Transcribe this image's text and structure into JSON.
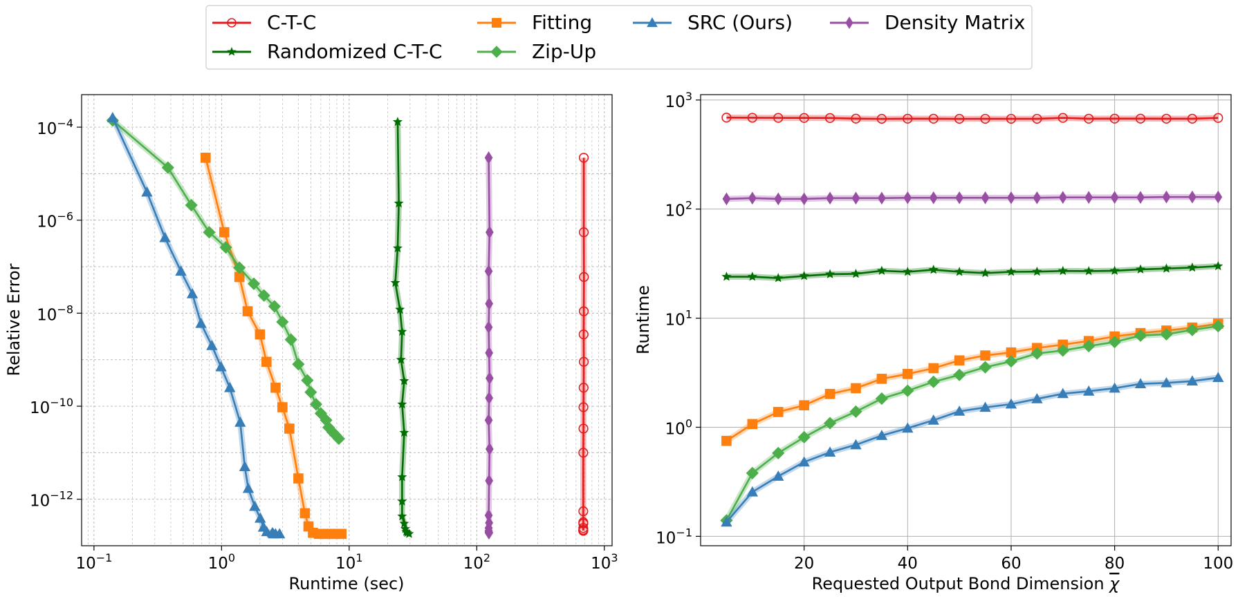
{
  "legend": {
    "entries": [
      {
        "key": "ctc",
        "label": "C-T-C",
        "color": "#e31a1c",
        "marker": "circle-open"
      },
      {
        "key": "rctc",
        "label": "Randomized C-T-C",
        "color": "#006d00",
        "marker": "star"
      },
      {
        "key": "fit",
        "label": "Fitting",
        "color": "#ff7f0e",
        "marker": "square"
      },
      {
        "key": "zip",
        "label": "Zip-Up",
        "color": "#4daf4a",
        "marker": "diamond"
      },
      {
        "key": "src",
        "label": "SRC (Ours)",
        "color": "#377eb8",
        "marker": "triangle"
      },
      {
        "key": "dm",
        "label": "Density Matrix",
        "color": "#984ea3",
        "marker": "thin-diamond"
      }
    ]
  },
  "chart_data": [
    {
      "type": "line",
      "xlabel": "Runtime (sec)",
      "ylabel": "Relative Error",
      "xscale": "log",
      "yscale": "log",
      "xlim": [
        0.08,
        1150
      ],
      "ylim": [
        1e-13,
        0.0005
      ],
      "xticks": [
        {
          "value": 0.1,
          "base": "10",
          "exp": "−1"
        },
        {
          "value": 1,
          "base": "10",
          "exp": "0"
        },
        {
          "value": 10,
          "base": "10",
          "exp": "1"
        },
        {
          "value": 100,
          "base": "10",
          "exp": "2"
        },
        {
          "value": 1000,
          "base": "10",
          "exp": "3"
        }
      ],
      "yticks": [
        {
          "value": 1e-12,
          "base": "10",
          "exp": "−12"
        },
        {
          "value": 1e-10,
          "base": "10",
          "exp": "−10"
        },
        {
          "value": 1e-08,
          "base": "10",
          "exp": "−8"
        },
        {
          "value": 1e-06,
          "base": "10",
          "exp": "−6"
        },
        {
          "value": 0.0001,
          "base": "10",
          "exp": "−4"
        }
      ],
      "grid": "both-major-minor",
      "series": [
        {
          "key": "ctc",
          "x": [
            690,
            690,
            692,
            690,
            688,
            690,
            688,
            686,
            686,
            684,
            684,
            684,
            684,
            684,
            684,
            684,
            684,
            684,
            684
          ],
          "y": [
            2.2e-05,
            5.5e-07,
            6e-08,
            1.1e-08,
            3.5e-09,
            9e-10,
            2.5e-10,
            9.5e-11,
            3.3e-11,
            1e-11,
            3.2e-13,
            5.5e-13,
            3e-13,
            2.4e-13,
            2.2e-13,
            2.1e-13,
            2.1e-13,
            2.1e-13,
            2.1e-13
          ]
        },
        {
          "key": "rctc",
          "x": [
            24,
            24.5,
            24,
            23,
            25,
            26,
            25.5,
            27,
            26,
            27,
            26,
            26,
            26,
            27,
            27.5,
            28,
            28.5,
            29.5
          ],
          "y": [
            0.00013,
            2.3e-06,
            2.5e-07,
            4.5e-08,
            1.2e-08,
            4e-09,
            1e-09,
            3.5e-10,
            1.1e-10,
            2.7e-11,
            3e-12,
            9e-13,
            4.3e-13,
            3e-13,
            2.3e-13,
            2e-13,
            1.9e-13,
            1.8e-13
          ]
        },
        {
          "key": "fit",
          "x": [
            0.75,
            1.05,
            1.38,
            1.6,
            2.0,
            2.25,
            2.65,
            3.0,
            3.4,
            4.0,
            4.5,
            4.8,
            5.2,
            5.8,
            6.3,
            6.8,
            7.4,
            8.0,
            8.7
          ],
          "y": [
            2.2e-05,
            5.5e-07,
            6e-08,
            1.1e-08,
            3.5e-09,
            9e-10,
            2.5e-10,
            9.5e-11,
            3.3e-11,
            2.8e-12,
            5e-13,
            2.6e-13,
            1.9e-13,
            1.8e-13,
            1.8e-13,
            1.8e-13,
            1.8e-13,
            1.8e-13,
            1.8e-13
          ]
        },
        {
          "key": "zip",
          "x": [
            0.14,
            0.38,
            0.58,
            0.8,
            1.08,
            1.38,
            1.79,
            2.15,
            2.6,
            3.0,
            3.5,
            4.0,
            4.7,
            5.0,
            5.5,
            6.0,
            6.6,
            6.9,
            7.4,
            7.8,
            8.3
          ],
          "y": [
            0.00014,
            1.35e-05,
            2.1e-06,
            5.5e-07,
            2.6e-07,
            9.5e-08,
            4.3e-08,
            2.4e-08,
            1.4e-08,
            6.5e-09,
            2.7e-09,
            8e-10,
            3.6e-10,
            2e-10,
            1.1e-10,
            7e-11,
            5e-11,
            3.5e-11,
            2.8e-11,
            2.4e-11,
            2e-11
          ]
        },
        {
          "key": "src",
          "x": [
            0.14,
            0.26,
            0.36,
            0.48,
            0.59,
            0.69,
            0.84,
            0.99,
            1.16,
            1.4,
            1.52,
            1.62,
            1.82,
            2.01,
            2.13,
            2.26,
            2.5,
            2.55,
            2.65,
            2.85
          ],
          "y": [
            0.00016,
            4e-06,
            4.2e-07,
            8e-08,
            2.6e-08,
            6e-09,
            2e-09,
            7e-10,
            2.5e-10,
            4.5e-11,
            5e-12,
            1.7e-12,
            7e-13,
            3.9e-13,
            2.5e-13,
            2e-13,
            1.9e-13,
            1.8e-13,
            1.8e-13,
            1.8e-13
          ]
        },
        {
          "key": "dm",
          "x": [
            124,
            126,
            124,
            125,
            124,
            125,
            126,
            125,
            124,
            126,
            125,
            124,
            125,
            124,
            124,
            124,
            125,
            124,
            125
          ],
          "y": [
            2.2e-05,
            5.5e-07,
            8e-08,
            1.6e-08,
            5e-09,
            1.4e-09,
            4e-10,
            1.5e-10,
            5e-11,
            1.2e-11,
            2.5e-12,
            4.5e-13,
            3.1e-13,
            2.4e-13,
            2.1e-13,
            2e-13,
            1.9e-13,
            1.9e-13,
            1.9e-13
          ]
        }
      ]
    },
    {
      "type": "line",
      "xlabel": "Requested Output Bond Dimension χ",
      "xlabel_main": "Requested Output Bond Dimension ",
      "xlabel_symbol": "χ",
      "ylabel": "Runtime",
      "xscale": "linear",
      "yscale": "log",
      "xlim": [
        0,
        102.5
      ],
      "ylim": [
        0.082,
        1120
      ],
      "xticks": [
        {
          "value": 20,
          "label": "20"
        },
        {
          "value": 40,
          "label": "40"
        },
        {
          "value": 60,
          "label": "60"
        },
        {
          "value": 80,
          "label": "80"
        },
        {
          "value": 100,
          "label": "100"
        }
      ],
      "yticks": [
        {
          "value": 0.1,
          "base": "10",
          "exp": "−1"
        },
        {
          "value": 1,
          "base": "10",
          "exp": "0"
        },
        {
          "value": 10,
          "base": "10",
          "exp": "1"
        },
        {
          "value": 100,
          "base": "10",
          "exp": "2"
        },
        {
          "value": 1000,
          "base": "10",
          "exp": "3"
        }
      ],
      "grid": "major",
      "x": [
        5,
        10,
        15,
        20,
        25,
        30,
        35,
        40,
        45,
        50,
        55,
        60,
        65,
        70,
        75,
        80,
        85,
        90,
        95,
        100
      ],
      "series": [
        {
          "key": "ctc",
          "values": [
            690,
            688,
            686,
            685,
            684,
            675,
            672,
            674,
            674,
            672,
            673,
            673,
            673,
            686,
            674,
            675,
            675,
            674,
            674,
            685
          ]
        },
        {
          "key": "dm",
          "values": [
            124,
            126,
            124,
            124,
            126,
            126,
            126,
            127,
            127,
            127,
            127,
            127,
            127,
            128,
            128,
            128,
            128,
            129,
            129,
            129
          ]
        },
        {
          "key": "rctc",
          "values": [
            24,
            24,
            23.3,
            24.4,
            25.3,
            25.5,
            27.2,
            26.6,
            27.8,
            26.6,
            25.9,
            26.6,
            26.7,
            27.1,
            27.0,
            27.2,
            28.0,
            28.5,
            29.1,
            30.0
          ]
        },
        {
          "key": "fit",
          "values": [
            0.75,
            1.07,
            1.38,
            1.59,
            2.02,
            2.28,
            2.78,
            3.08,
            3.48,
            4.1,
            4.55,
            4.85,
            5.33,
            5.72,
            6.17,
            6.8,
            7.3,
            7.7,
            8.2,
            8.9
          ]
        },
        {
          "key": "zip",
          "values": [
            0.14,
            0.38,
            0.58,
            0.81,
            1.09,
            1.39,
            1.83,
            2.16,
            2.61,
            3.02,
            3.55,
            4.02,
            4.75,
            5.05,
            5.55,
            6.05,
            6.92,
            7.12,
            7.8,
            8.45
          ]
        },
        {
          "key": "src",
          "values": [
            0.135,
            0.255,
            0.355,
            0.48,
            0.59,
            0.69,
            0.84,
            0.98,
            1.16,
            1.4,
            1.52,
            1.63,
            1.82,
            2.03,
            2.14,
            2.28,
            2.5,
            2.55,
            2.65,
            2.85
          ]
        }
      ]
    }
  ]
}
